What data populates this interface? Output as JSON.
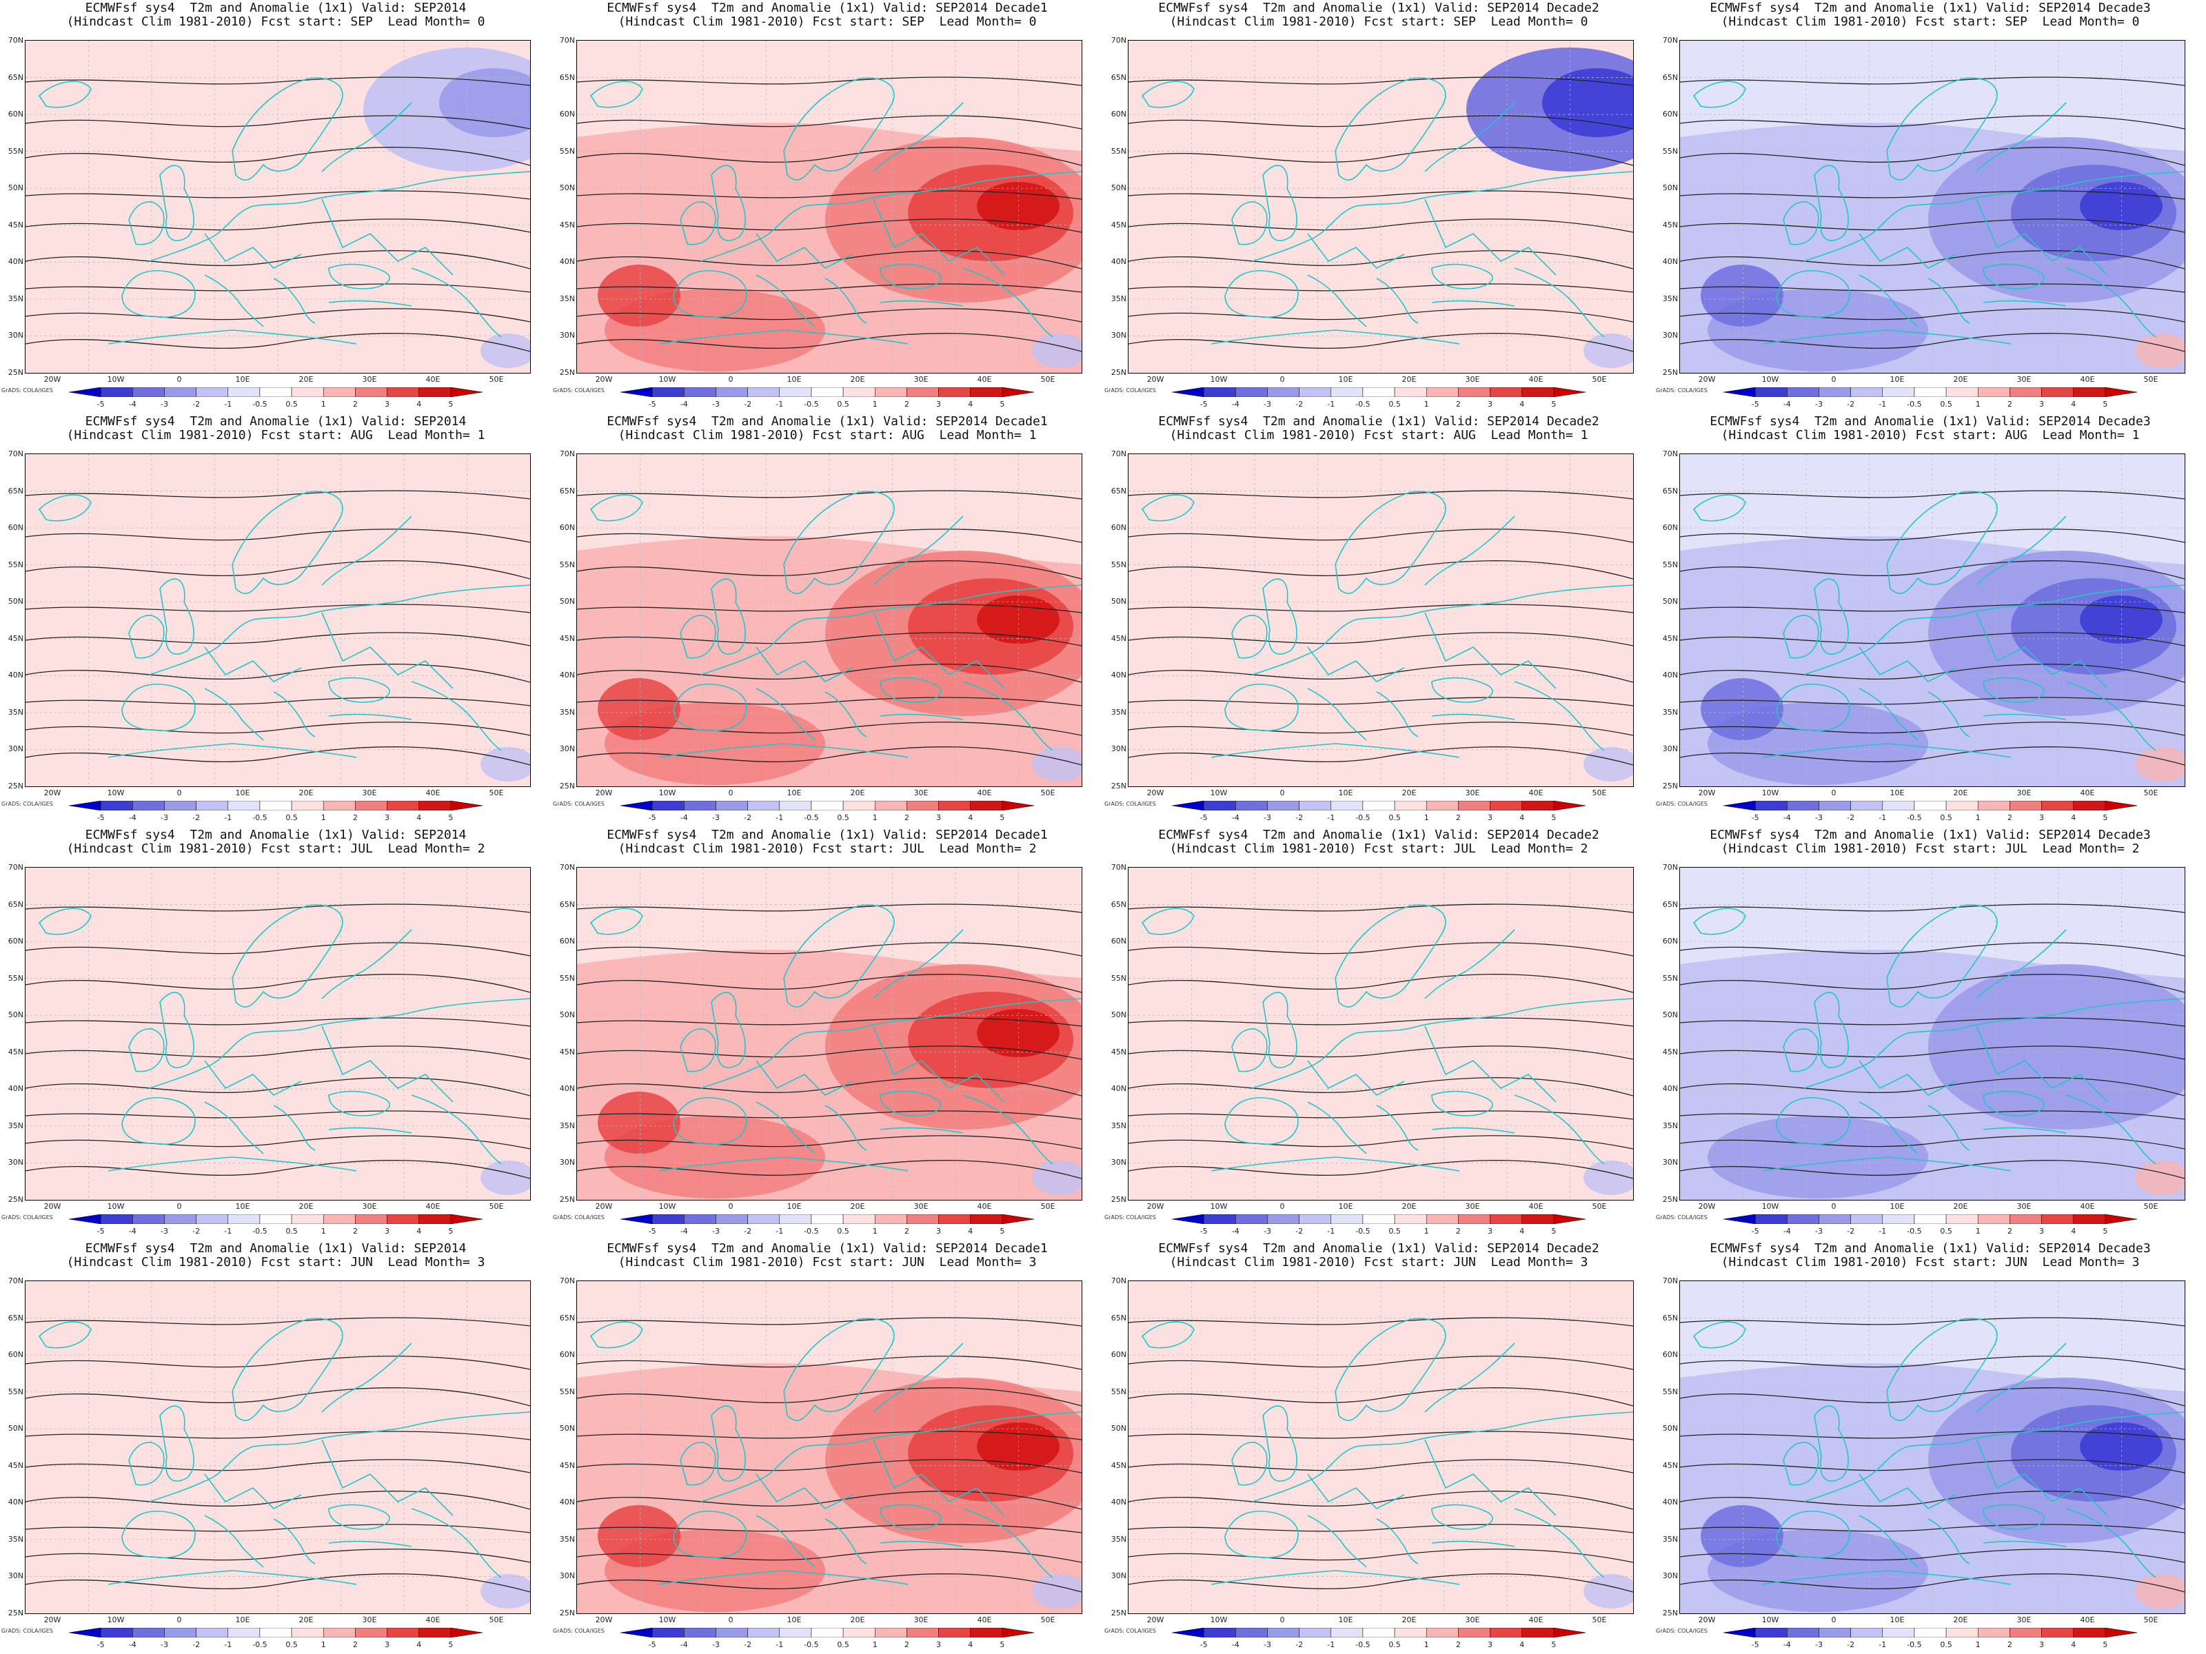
{
  "figure": {
    "colors": {
      "coast": "#1fc7c7",
      "contour": "#222222",
      "grid": "#bbbbbb",
      "warm": [
        "#ffffff",
        "#fde0e0",
        "#f9b4b4",
        "#f27f7f",
        "#e84545",
        "#d41515"
      ],
      "cold": [
        "#ffffff",
        "#e2e2fb",
        "#c2c2f4",
        "#9a9aea",
        "#6f6fe0",
        "#3d3dd6"
      ]
    },
    "y_ticks": [
      "70N",
      "65N",
      "60N",
      "55N",
      "50N",
      "45N",
      "40N",
      "35N",
      "30N",
      "25N"
    ],
    "x_ticks": [
      "20W",
      "10W",
      "0",
      "10E",
      "20E",
      "30E",
      "40E",
      "50E"
    ],
    "colorbar_ticks": [
      "-5",
      "-4",
      "-3",
      "-2",
      "-1",
      "-0.5",
      "0.5",
      "1",
      "2",
      "3",
      "4",
      "5"
    ],
    "credit": "GrADS: COLA/IGES",
    "panels": [
      {
        "title1": "ECMWFsf sys4  T2m and Anomalie (1x1) Valid: SEP2014",
        "title2": "(Hindcast Clim 1981-2010) Fcst start: SEP  Lead Month= 0",
        "warmth": 1,
        "east_cold": 1
      },
      {
        "title1": "ECMWFsf sys4  T2m and Anomalie (1x1) Valid: SEP2014 Decade1",
        "title2": "(Hindcast Clim 1981-2010) Fcst start: SEP  Lead Month= 0",
        "warmth": 3,
        "east_cold": 0
      },
      {
        "title1": "ECMWFsf sys4  T2m and Anomalie (1x1) Valid: SEP2014 Decade2",
        "title2": "(Hindcast Clim 1981-2010) Fcst start: SEP  Lead Month= 0",
        "warmth": 1,
        "east_cold": 3
      },
      {
        "title1": "ECMWFsf sys4  T2m and Anomalie (1x1) Valid: SEP2014 Decade3",
        "title2": "(Hindcast Clim 1981-2010) Fcst start: SEP  Lead Month= 0",
        "warmth": -3,
        "east_cold": 0
      },
      {
        "title1": "ECMWFsf sys4  T2m and Anomalie (1x1) Valid: SEP2014",
        "title2": "(Hindcast Clim 1981-2010) Fcst start: AUG  Lead Month= 1",
        "warmth": 1,
        "east_cold": 0
      },
      {
        "title1": "ECMWFsf sys4  T2m and Anomalie (1x1) Valid: SEP2014 Decade1",
        "title2": "(Hindcast Clim 1981-2010) Fcst start: AUG  Lead Month= 1",
        "warmth": 3,
        "east_cold": 0
      },
      {
        "title1": "ECMWFsf sys4  T2m and Anomalie (1x1) Valid: SEP2014 Decade2",
        "title2": "(Hindcast Clim 1981-2010) Fcst start: AUG  Lead Month= 1",
        "warmth": 1,
        "east_cold": 0
      },
      {
        "title1": "ECMWFsf sys4  T2m and Anomalie (1x1) Valid: SEP2014 Decade3",
        "title2": "(Hindcast Clim 1981-2010) Fcst start: AUG  Lead Month= 1",
        "warmth": -3,
        "east_cold": 0
      },
      {
        "title1": "ECMWFsf sys4  T2m and Anomalie (1x1) Valid: SEP2014",
        "title2": "(Hindcast Clim 1981-2010) Fcst start: JUL  Lead Month= 2",
        "warmth": 1,
        "east_cold": 0
      },
      {
        "title1": "ECMWFsf sys4  T2m and Anomalie (1x1) Valid: SEP2014 Decade1",
        "title2": "(Hindcast Clim 1981-2010) Fcst start: JUL  Lead Month= 2",
        "warmth": 3,
        "east_cold": 0
      },
      {
        "title1": "ECMWFsf sys4  T2m and Anomalie (1x1) Valid: SEP2014 Decade2",
        "title2": "(Hindcast Clim 1981-2010) Fcst start: JUL  Lead Month= 2",
        "warmth": 1,
        "east_cold": 0
      },
      {
        "title1": "ECMWFsf sys4  T2m and Anomalie (1x1) Valid: SEP2014 Decade3",
        "title2": "(Hindcast Clim 1981-2010) Fcst start: JUL  Lead Month= 2",
        "warmth": -2,
        "east_cold": 0
      },
      {
        "title1": "ECMWFsf sys4  T2m and Anomalie (1x1) Valid: SEP2014",
        "title2": "(Hindcast Clim 1981-2010) Fcst start: JUN  Lead Month= 3",
        "warmth": 1,
        "east_cold": 0
      },
      {
        "title1": "ECMWFsf sys4  T2m and Anomalie (1x1) Valid: SEP2014 Decade1",
        "title2": "(Hindcast Clim 1981-2010) Fcst start: JUN  Lead Month= 3",
        "warmth": 3,
        "east_cold": 0
      },
      {
        "title1": "ECMWFsf sys4  T2m and Anomalie (1x1) Valid: SEP2014 Decade2",
        "title2": "(Hindcast Clim 1981-2010) Fcst start: JUN  Lead Month= 3",
        "warmth": 1,
        "east_cold": 0
      },
      {
        "title1": "ECMWFsf sys4  T2m and Anomalie (1x1) Valid: SEP2014 Decade3",
        "title2": "(Hindcast Clim 1981-2010) Fcst start: JUN  Lead Month= 3",
        "warmth": -3,
        "east_cold": 0
      }
    ]
  }
}
